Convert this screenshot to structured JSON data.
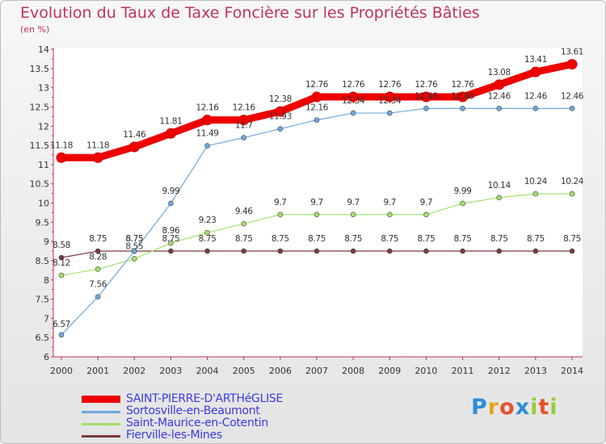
{
  "title": "Evolution du Taux de Taxe Foncière sur les Propriétés Bâties",
  "subtitle": "(en %)",
  "logo": {
    "letters": [
      "P",
      "r",
      "o",
      "x",
      "i",
      "t",
      "i"
    ],
    "colors": [
      "#2b8fd9",
      "#e8a41c",
      "#e8502f",
      "#2b8fd9",
      "#9acd32",
      "#e8502f",
      "#9acd32"
    ]
  },
  "chart_data": {
    "type": "line",
    "title": "Evolution du Taux de Taxe Foncière sur les Propriétés Bâties",
    "ylabel": "(en %)",
    "x": [
      "2000",
      "2001",
      "2002",
      "2003",
      "2004",
      "2005",
      "2006",
      "2007",
      "2008",
      "2009",
      "2010",
      "2011",
      "2012",
      "2013",
      "2014"
    ],
    "ylim": [
      6,
      14
    ],
    "yticks": [
      "6",
      "6.5",
      "7",
      "7.5",
      "8",
      "8.5",
      "9",
      "9.5",
      "10",
      "10.5",
      "11",
      "11.5",
      "12",
      "12.5",
      "13",
      "13.5",
      "14"
    ],
    "grid": false,
    "legend": "bottom-left",
    "series": [
      {
        "name": "SAINT-PIERRE-D'ARTHéGLISE",
        "color": "#ee0000",
        "width": 9,
        "values": [
          11.18,
          11.18,
          11.46,
          11.81,
          12.16,
          12.16,
          12.38,
          12.76,
          12.76,
          12.76,
          12.76,
          12.76,
          13.08,
          13.41,
          13.61
        ],
        "labels": [
          "11.18",
          "11.18",
          "11.46",
          "11.81",
          "12.16",
          "12.16",
          "12.38",
          "12.76",
          "12.76",
          "12.76",
          "12.76",
          "12.76",
          "13.08",
          "13.41",
          "13.61"
        ]
      },
      {
        "name": "Sortosville-en-Beaumont",
        "color": "#6fa8dc",
        "width": 1.2,
        "values": [
          6.57,
          7.56,
          8.75,
          9.99,
          11.49,
          11.7,
          11.93,
          12.16,
          12.34,
          12.34,
          12.46,
          12.46,
          12.46,
          12.46,
          12.46
        ],
        "labels": [
          "6.57",
          "7.56",
          "8.75",
          "9.99",
          "11.49",
          "11.7",
          "11.93",
          "12.16",
          "12.34",
          "12.34",
          "12.46",
          "12.46",
          "12.46",
          "12.46",
          "12.46"
        ]
      },
      {
        "name": "Saint-Maurice-en-Cotentin",
        "color": "#a2e06a",
        "width": 1.2,
        "values": [
          8.12,
          8.28,
          8.55,
          8.96,
          9.23,
          9.46,
          9.7,
          9.7,
          9.7,
          9.7,
          9.7,
          9.99,
          10.14,
          10.24,
          10.24
        ],
        "labels": [
          "8.12",
          "8.28",
          "8.55",
          "8.96",
          "9.23",
          "9.46",
          "9.7",
          "9.7",
          "9.7",
          "9.7",
          "9.7",
          "9.99",
          "10.14",
          "10.24",
          "10.24"
        ]
      },
      {
        "name": "Fierville-les-Mines",
        "color": "#7a3a3a",
        "width": 1.2,
        "values": [
          8.58,
          8.75,
          8.75,
          8.75,
          8.75,
          8.75,
          8.75,
          8.75,
          8.75,
          8.75,
          8.75,
          8.75,
          8.75,
          8.75,
          8.75
        ],
        "labels": [
          "8.58",
          "8.75",
          "8.75",
          "8.75",
          "8.75",
          "8.75",
          "8.75",
          "8.75",
          "8.75",
          "8.75",
          "8.75",
          "8.75",
          "8.75",
          "8.75",
          "8.75"
        ]
      }
    ]
  }
}
